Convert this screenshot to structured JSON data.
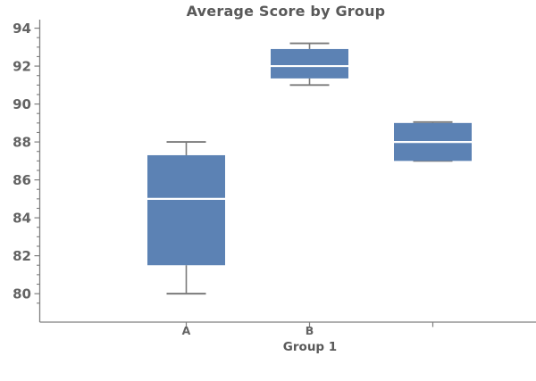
{
  "chart_data": {
    "type": "box",
    "title": "Average Score by Group",
    "xlabel": "Group 1",
    "ylabel": "",
    "categories": [
      "A",
      "B",
      ""
    ],
    "series": [
      {
        "name": "A",
        "whisker_low": 80,
        "q1": 81.5,
        "median": 85,
        "q3": 87.3,
        "whisker_high": 88
      },
      {
        "name": "B",
        "whisker_low": 91,
        "q1": 91.35,
        "median": 92,
        "q3": 92.9,
        "whisker_high": 93.2
      },
      {
        "name": "",
        "whisker_low": 87,
        "q1": 87,
        "median": 88,
        "q3": 89,
        "whisker_high": 89.05
      }
    ],
    "ylim": [
      78.5,
      94.45
    ],
    "y_major_ticks": [
      94,
      92,
      90,
      88,
      86,
      84,
      82,
      80
    ],
    "y_minor_step": 0.5,
    "grid": false,
    "legend": false,
    "colors": {
      "box_fill": "#5c82b4",
      "median_line": "#ffffff",
      "whisker": "#7a7a7a",
      "axis": "#7f7f7f",
      "tick_label": "#636363",
      "title": "#595959"
    }
  }
}
